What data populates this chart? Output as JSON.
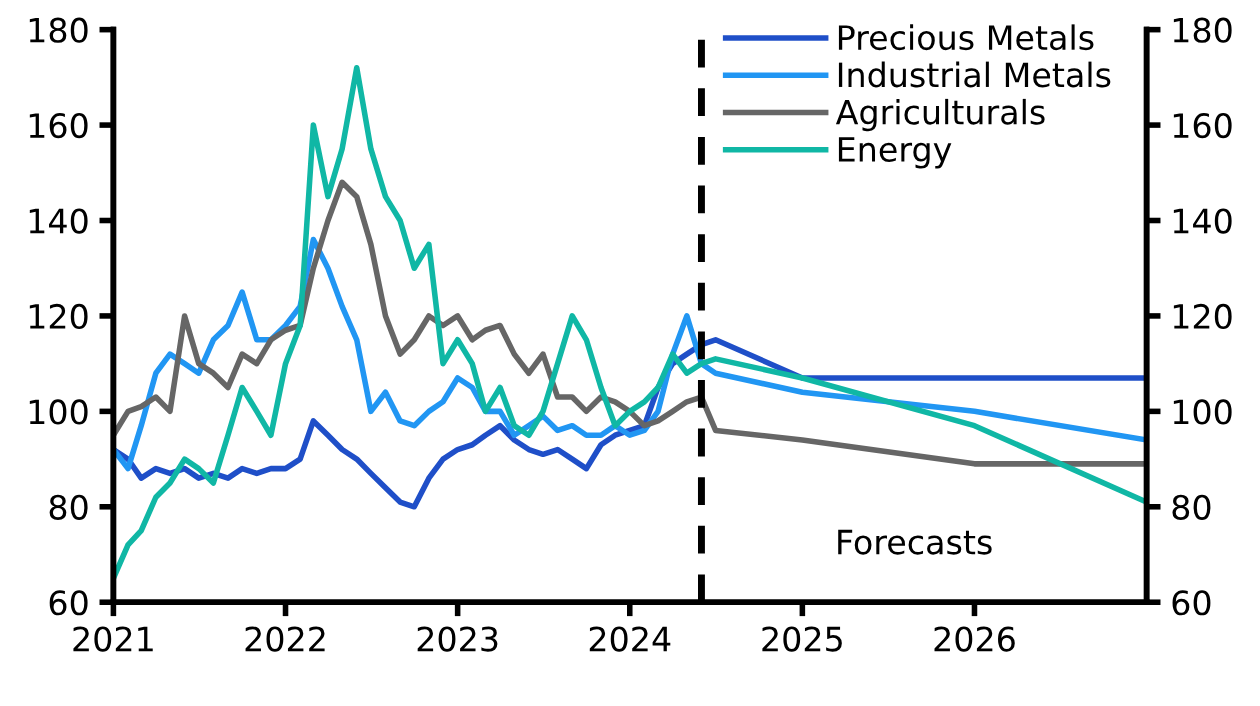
{
  "chart_data": {
    "type": "line",
    "x": [
      "2021-01",
      "2021-02",
      "2021-03",
      "2021-04",
      "2021-05",
      "2021-06",
      "2021-07",
      "2021-08",
      "2021-09",
      "2021-10",
      "2021-11",
      "2021-12",
      "2022-01",
      "2022-02",
      "2022-03",
      "2022-04",
      "2022-05",
      "2022-06",
      "2022-07",
      "2022-08",
      "2022-09",
      "2022-10",
      "2022-11",
      "2022-12",
      "2023-01",
      "2023-02",
      "2023-03",
      "2023-04",
      "2023-05",
      "2023-06",
      "2023-07",
      "2023-08",
      "2023-09",
      "2023-10",
      "2023-11",
      "2023-12",
      "2024-01",
      "2024-02",
      "2024-03",
      "2024-04",
      "2024-05",
      "2024-06",
      "2024-07",
      "2025-01",
      "2026-01",
      "2027-01"
    ],
    "series": [
      {
        "name": "Precious Metals",
        "color": "#1f4fc8",
        "values": [
          92,
          90,
          86,
          88,
          87,
          88,
          86,
          87,
          86,
          88,
          87,
          88,
          88,
          90,
          98,
          95,
          92,
          90,
          87,
          84,
          81,
          80,
          86,
          90,
          92,
          93,
          95,
          97,
          94,
          92,
          91,
          92,
          90,
          88,
          93,
          95,
          96,
          97,
          105,
          110,
          112,
          114,
          115,
          107,
          107,
          107
        ]
      },
      {
        "name": "Industrial Metals",
        "color": "#2196f3",
        "values": [
          92,
          88,
          97,
          108,
          112,
          110,
          108,
          115,
          118,
          125,
          115,
          115,
          118,
          122,
          136,
          130,
          122,
          115,
          100,
          104,
          98,
          97,
          100,
          102,
          107,
          105,
          100,
          100,
          95,
          97,
          99,
          96,
          97,
          95,
          95,
          97,
          95,
          96,
          100,
          112,
          120,
          110,
          108,
          104,
          100,
          94
        ]
      },
      {
        "name": "Agriculturals",
        "color": "#666666",
        "values": [
          95,
          100,
          101,
          103,
          100,
          120,
          110,
          108,
          105,
          112,
          110,
          115,
          117,
          118,
          130,
          140,
          148,
          145,
          135,
          120,
          112,
          115,
          120,
          118,
          120,
          115,
          117,
          118,
          112,
          108,
          112,
          103,
          103,
          100,
          103,
          102,
          100,
          97,
          98,
          100,
          102,
          103,
          96,
          94,
          89,
          89
        ]
      },
      {
        "name": "Energy",
        "color": "#10b7a5",
        "values": [
          65,
          72,
          75,
          82,
          85,
          90,
          88,
          85,
          95,
          105,
          100,
          95,
          110,
          118,
          160,
          145,
          155,
          172,
          155,
          145,
          140,
          130,
          135,
          110,
          115,
          110,
          100,
          105,
          97,
          95,
          100,
          110,
          120,
          115,
          105,
          97,
          100,
          102,
          105,
          112,
          108,
          110,
          111,
          107,
          97,
          81
        ]
      }
    ],
    "xlim": [
      "2021",
      "2027"
    ],
    "xticks": [
      "2021",
      "2022",
      "2023",
      "2024",
      "2025",
      "2026"
    ],
    "ylim": [
      60,
      180
    ],
    "yticks": [
      60,
      80,
      100,
      120,
      140,
      160,
      180
    ],
    "y2lim": [
      60,
      180
    ],
    "y2ticks": [
      60,
      80,
      100,
      120,
      140,
      160,
      180
    ],
    "ref_lines": [
      {
        "axis": "x",
        "value": "2024-06",
        "color": "#000000",
        "line_style": "dashed"
      }
    ],
    "annotations": [
      "Forecasts"
    ],
    "legend": "top right",
    "grid": false,
    "marker": "none",
    "line_style": "solid"
  }
}
